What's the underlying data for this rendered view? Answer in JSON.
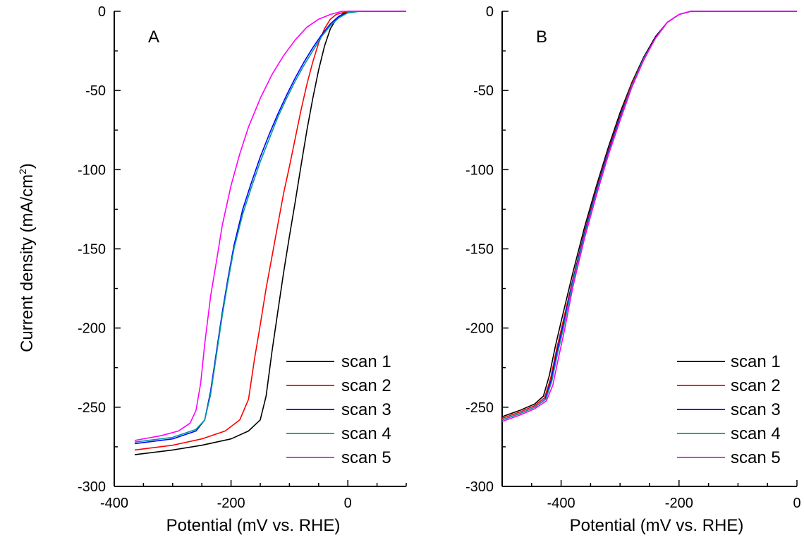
{
  "figure": {
    "ylabel": "Current density (mA/cm",
    "ylabel_sup": "2",
    "ylabel_close": ")"
  },
  "chart_data": [
    {
      "type": "line",
      "panel_label": "A",
      "xlabel": "Potential (mV vs. RHE)",
      "xlim": [
        -400,
        100
      ],
      "ylim": [
        -300,
        0
      ],
      "x_ticks": [
        -400,
        -200,
        0
      ],
      "y_ticks": [
        0,
        -50,
        -100,
        -150,
        -200,
        -250,
        -300
      ],
      "grid": false,
      "legend_position": "bottom-right",
      "series": [
        {
          "name": "scan 1",
          "color": "#000000",
          "x": [
            -365,
            -300,
            -250,
            -200,
            -170,
            -150,
            -140,
            -130,
            -120,
            -110,
            -100,
            -90,
            -80,
            -70,
            -60,
            -50,
            -40,
            -30,
            -20,
            -10,
            0,
            20,
            40,
            100
          ],
          "y": [
            -280,
            -277,
            -274,
            -270,
            -265,
            -258,
            -243,
            -215,
            -190,
            -165,
            -142,
            -120,
            -97,
            -75,
            -55,
            -37,
            -22,
            -11,
            -5,
            -2,
            0,
            0,
            0,
            0
          ]
        },
        {
          "name": "scan 2",
          "color": "#ff0000",
          "x": [
            -365,
            -300,
            -250,
            -210,
            -185,
            -170,
            -160,
            -150,
            -140,
            -130,
            -120,
            -110,
            -100,
            -90,
            -80,
            -70,
            -60,
            -50,
            -40,
            -30,
            -20,
            -10,
            0,
            20,
            40,
            100
          ],
          "y": [
            -277,
            -274,
            -270,
            -265,
            -258,
            -245,
            -220,
            -198,
            -175,
            -155,
            -135,
            -115,
            -98,
            -80,
            -62,
            -46,
            -32,
            -20,
            -11,
            -5,
            -2,
            -1,
            0,
            0,
            0,
            0
          ]
        },
        {
          "name": "scan 3",
          "color": "#0000ff",
          "x": [
            -365,
            -300,
            -260,
            -245,
            -235,
            -225,
            -215,
            -205,
            -195,
            -180,
            -165,
            -150,
            -135,
            -120,
            -105,
            -90,
            -75,
            -60,
            -45,
            -30,
            -15,
            0,
            20,
            40,
            100
          ],
          "y": [
            -273,
            -270,
            -265,
            -258,
            -240,
            -215,
            -190,
            -168,
            -148,
            -125,
            -108,
            -92,
            -78,
            -65,
            -53,
            -42,
            -32,
            -23,
            -15,
            -8,
            -3,
            -1,
            0,
            0,
            0
          ]
        },
        {
          "name": "scan 4",
          "color": "#009999",
          "x": [
            -365,
            -300,
            -260,
            -245,
            -235,
            -225,
            -215,
            -205,
            -195,
            -180,
            -165,
            -150,
            -135,
            -120,
            -105,
            -90,
            -75,
            -60,
            -45,
            -30,
            -15,
            0,
            20,
            40,
            100
          ],
          "y": [
            -272,
            -269,
            -264,
            -258,
            -242,
            -217,
            -192,
            -170,
            -150,
            -128,
            -111,
            -95,
            -81,
            -67,
            -55,
            -44,
            -34,
            -25,
            -16,
            -9,
            -4,
            -1,
            0,
            0,
            0
          ]
        },
        {
          "name": "scan 5",
          "color": "#ff00ff",
          "x": [
            -365,
            -320,
            -290,
            -270,
            -260,
            -252,
            -245,
            -235,
            -225,
            -215,
            -200,
            -185,
            -170,
            -150,
            -130,
            -110,
            -90,
            -70,
            -50,
            -30,
            -10,
            10,
            30,
            60,
            100
          ],
          "y": [
            -271,
            -268,
            -265,
            -260,
            -252,
            -235,
            -210,
            -180,
            -158,
            -135,
            -110,
            -90,
            -73,
            -55,
            -40,
            -28,
            -18,
            -10,
            -5,
            -2,
            0,
            0,
            0,
            0,
            0
          ]
        }
      ]
    },
    {
      "type": "line",
      "panel_label": "B",
      "xlabel": "Potential (mV vs. RHE)",
      "xlim": [
        -500,
        0
      ],
      "ylim": [
        -300,
        0
      ],
      "x_ticks": [
        -400,
        -200,
        0
      ],
      "y_ticks": [
        0,
        -50,
        -100,
        -150,
        -200,
        -250,
        -300
      ],
      "grid": false,
      "legend_position": "bottom-right",
      "series": [
        {
          "name": "scan 1",
          "color": "#000000",
          "x": [
            -500,
            -470,
            -445,
            -430,
            -420,
            -410,
            -400,
            -380,
            -360,
            -340,
            -320,
            -300,
            -280,
            -260,
            -240,
            -220,
            -200,
            -180,
            -165,
            -150,
            -100,
            0
          ],
          "y": [
            -256,
            -252,
            -248,
            -243,
            -230,
            -212,
            -196,
            -165,
            -136,
            -110,
            -86,
            -64,
            -45,
            -29,
            -16,
            -7,
            -2,
            0,
            0,
            0,
            0,
            0
          ]
        },
        {
          "name": "scan 2",
          "color": "#ff0000",
          "x": [
            -500,
            -470,
            -445,
            -428,
            -418,
            -408,
            -398,
            -380,
            -360,
            -340,
            -320,
            -300,
            -280,
            -260,
            -240,
            -220,
            -200,
            -180,
            -165,
            -150,
            -100,
            0
          ],
          "y": [
            -257,
            -253,
            -249,
            -244,
            -232,
            -214,
            -198,
            -169,
            -139,
            -112,
            -88,
            -66,
            -46,
            -30,
            -17,
            -7,
            -2,
            0,
            0,
            0,
            0,
            0
          ]
        },
        {
          "name": "scan 3",
          "color": "#0000ff",
          "x": [
            -500,
            -470,
            -445,
            -427,
            -417,
            -407,
            -397,
            -380,
            -360,
            -340,
            -320,
            -300,
            -280,
            -260,
            -240,
            -220,
            -200,
            -180,
            -165,
            -150,
            -100,
            0
          ],
          "y": [
            -258,
            -254,
            -250,
            -245,
            -233,
            -215,
            -199,
            -170,
            -140,
            -113,
            -89,
            -67,
            -47,
            -30,
            -17,
            -7,
            -2,
            0,
            0,
            0,
            0,
            0
          ]
        },
        {
          "name": "scan 4",
          "color": "#009999",
          "x": [
            -500,
            -470,
            -445,
            -426,
            -416,
            -406,
            -396,
            -380,
            -360,
            -340,
            -320,
            -300,
            -280,
            -260,
            -240,
            -220,
            -200,
            -180,
            -165,
            -150,
            -100,
            0
          ],
          "y": [
            -258,
            -254,
            -250,
            -245,
            -234,
            -216,
            -200,
            -171,
            -141,
            -114,
            -90,
            -68,
            -47,
            -30,
            -17,
            -7,
            -2,
            0,
            0,
            0,
            0,
            0
          ]
        },
        {
          "name": "scan 5",
          "color": "#ff00ff",
          "x": [
            -500,
            -470,
            -445,
            -425,
            -414,
            -404,
            -394,
            -380,
            -360,
            -340,
            -320,
            -300,
            -280,
            -260,
            -240,
            -220,
            -200,
            -180,
            -165,
            -150,
            -100,
            0
          ],
          "y": [
            -259,
            -255,
            -251,
            -246,
            -236,
            -218,
            -201,
            -174,
            -143,
            -116,
            -91,
            -69,
            -48,
            -31,
            -17,
            -7,
            -2,
            0,
            0,
            0,
            0,
            0
          ]
        }
      ]
    }
  ]
}
